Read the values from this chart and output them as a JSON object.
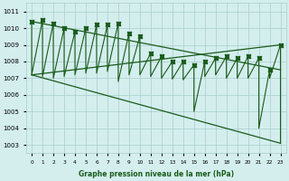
{
  "title": "Graphe pression niveau de la mer (hPa)",
  "bg_color": "#d4eeee",
  "grid_color": "#aacccc",
  "line_color": "#1a5c1a",
  "hours": [
    0,
    1,
    2,
    3,
    4,
    5,
    6,
    7,
    8,
    9,
    10,
    11,
    12,
    13,
    14,
    15,
    16,
    17,
    18,
    19,
    20,
    21,
    22,
    23
  ],
  "high_values": [
    1010.4,
    1010.5,
    1010.3,
    1010.0,
    1009.8,
    1010.0,
    1010.2,
    1010.2,
    1010.3,
    1009.7,
    1009.5,
    1008.5,
    1008.3,
    1008.0,
    1008.0,
    1007.8,
    1008.0,
    1008.2,
    1008.3,
    1008.2,
    1008.3,
    1008.2,
    1007.5,
    1009.0
  ],
  "low_values": [
    1007.2,
    1007.1,
    1007.0,
    1007.1,
    1007.2,
    1007.3,
    1007.3,
    1007.4,
    1006.8,
    1007.2,
    1007.2,
    1007.1,
    1007.0,
    1006.95,
    1006.9,
    1005.0,
    1007.1,
    1007.2,
    1007.0,
    1007.0,
    1007.0,
    1004.0,
    1007.0,
    1003.1
  ],
  "ylim": [
    1002.5,
    1011.5
  ],
  "yticks": [
    1003,
    1004,
    1005,
    1006,
    1007,
    1008,
    1009,
    1010,
    1011
  ],
  "trend_lines": [
    {
      "x": [
        0,
        23
      ],
      "y": [
        1010.4,
        1007.5
      ]
    },
    {
      "x": [
        0,
        23
      ],
      "y": [
        1007.2,
        1009.0
      ]
    },
    {
      "x": [
        0,
        23
      ],
      "y": [
        1007.2,
        1003.1
      ]
    }
  ]
}
